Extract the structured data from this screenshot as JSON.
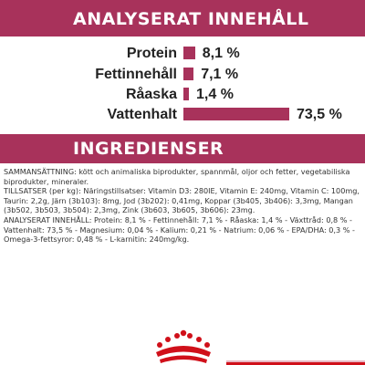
{
  "analysis_header": "ANALYSERAT INNEHÅLL",
  "ingredients_header": "INGREDIENSER",
  "nutrients": [
    {
      "label": "Protein",
      "value": "8,1 %",
      "percent": 8.1
    },
    {
      "label": "Fettinnehåll",
      "value": "7,1 %",
      "percent": 7.1
    },
    {
      "label": "Råaska",
      "value": "1,4 %",
      "percent": 1.4
    },
    {
      "label": "Vattenhalt",
      "value": "73,5 %",
      "percent": 73.5
    }
  ],
  "ingredients_text": {
    "composition": "SAMMANSÄTTNING: kött och animaliska biprodukter, spannmål, oljor och fetter, vegetabiliska biprodukter, mineraler.",
    "additives": "TILLSATSER (per kg): Näringstillsatser: Vitamin D3: 280IE, Vitamin E: 240mg, Vitamin C: 100mg, Taurin: 2,2g, Järn (3b103): 8mg, Jod (3b202): 0,41mg, Koppar (3b405, 3b406): 3,3mg, Mangan (3b502, 3b503, 3b504): 2,3mg, Zink (3b603, 3b605, 3b606): 23mg.",
    "analysis": "ANALYSERAT INNEHÅLL: Protein: 8,1 % - Fettinnehåll: 7,1 % - Råaska: 1,4 % - Växttråd: 0,8 % - Vattenhalt: 73,5 % - Magnesium: 0,04 % - Kalium: 0,21 % - Natrium: 0,06 % - EPA/DHA: 0,3 % - Omega-3-fettsyror: 0,48 % - L-karnitin: 240mg/kg."
  },
  "colors": {
    "brand": "#a8325b",
    "logo_red": "#d0101a"
  },
  "logo_icon": "royal-canin-crown-logo"
}
